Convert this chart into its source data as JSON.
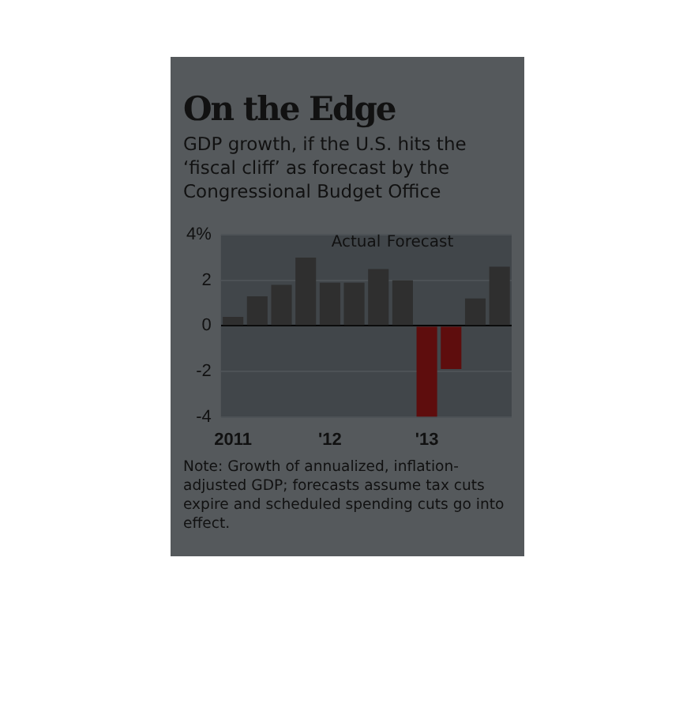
{
  "chart_data": {
    "type": "bar",
    "title": "On the Edge",
    "subtitle": "GDP growth, if the U.S. hits the ‘fiscal cliff’ as forecast by the Congressional Budget Office",
    "categories": [
      "2011",
      null,
      null,
      null,
      "'12",
      null,
      null,
      null,
      "'13",
      null,
      null,
      null
    ],
    "values": [
      0.4,
      1.3,
      1.8,
      3.0,
      1.9,
      1.9,
      2.5,
      2.0,
      -4.0,
      -1.9,
      1.2,
      2.6
    ],
    "colors": [
      "#2f2f2f",
      "#2f2f2f",
      "#2f2f2f",
      "#2f2f2f",
      "#2f2f2f",
      "#2f2f2f",
      "#2f2f2f",
      "#2f2f2f",
      "#5e0d0d",
      "#5e0d0d",
      "#2f2f2f",
      "#2f2f2f"
    ],
    "ylim": [
      -4,
      4
    ],
    "yticks": [
      -4,
      -2,
      0,
      2,
      {
        "value": 4,
        "label": "4%"
      }
    ],
    "grid": "y",
    "annotations": [
      "Actual",
      "Forecast",
      "Note: Growth of annualized, inflation-adjusted GDP; forecasts assume tax cuts expire and scheduled spending cuts go into effect."
    ]
  }
}
